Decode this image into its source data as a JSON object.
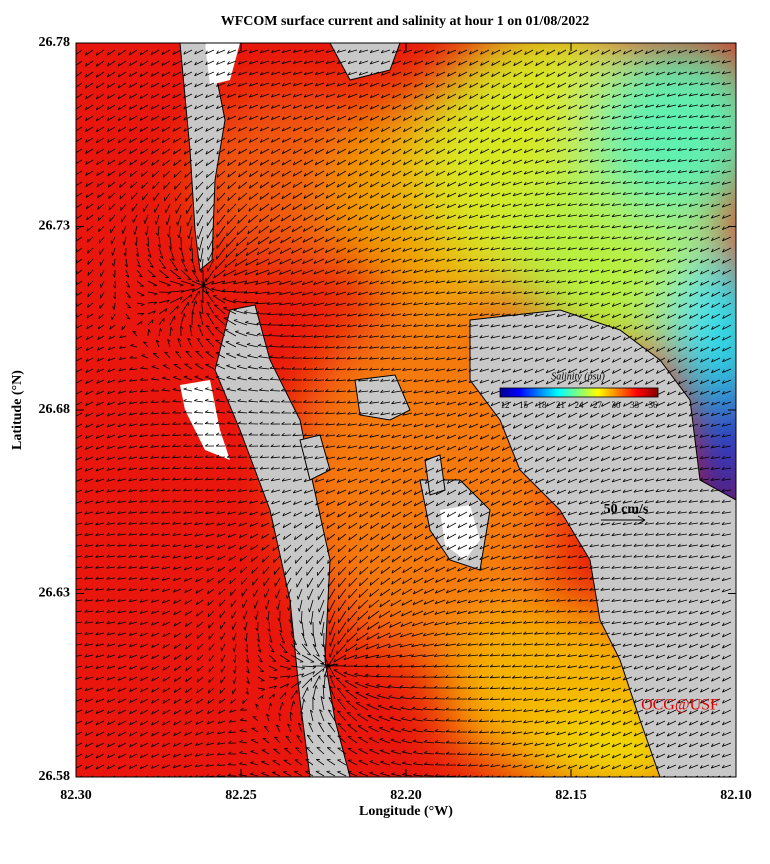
{
  "chart_data": {
    "type": "map",
    "title": "WFCOM surface current and salinity at hour 1 on 01/08/2022",
    "xlabel": "Longitude (°W)",
    "ylabel": "Latitude (°N)",
    "xlim": [
      82.3,
      82.1
    ],
    "ylim": [
      26.58,
      26.78
    ],
    "xticks": [
      {
        "value": 82.3,
        "label": "82.30"
      },
      {
        "value": 82.25,
        "label": "82.25"
      },
      {
        "value": 82.2,
        "label": "82.20"
      },
      {
        "value": 82.15,
        "label": "82.15"
      },
      {
        "value": 82.1,
        "label": "82.10"
      }
    ],
    "yticks": [
      26.58,
      26.63,
      26.68,
      26.73,
      26.78
    ],
    "colorbar": {
      "title": "Salinity (psu)",
      "lim": [
        12,
        36
      ],
      "ticks": [
        12,
        15,
        18,
        21,
        24,
        27,
        30,
        33,
        36
      ]
    },
    "scale_label": "50 cm/s",
    "credit": "OCG@USF"
  }
}
